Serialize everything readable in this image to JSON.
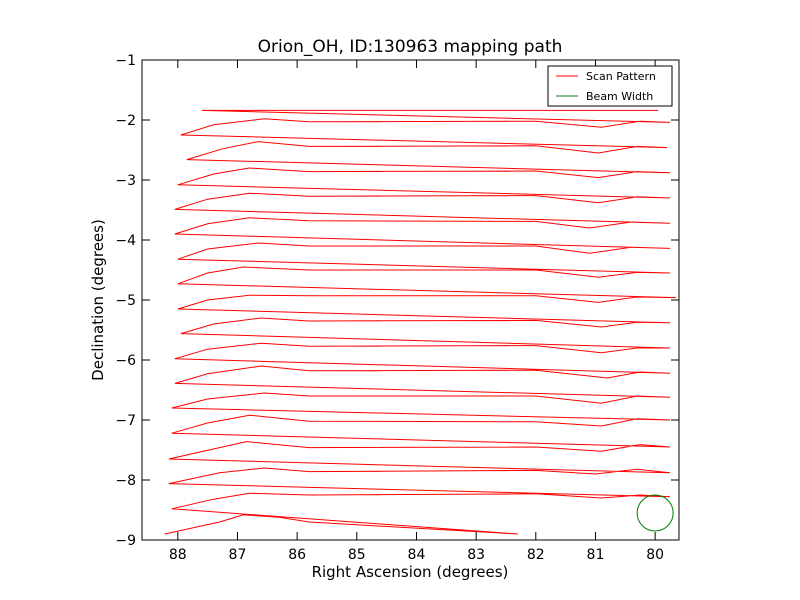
{
  "chart_data": {
    "type": "line",
    "title": "Orion_OH, ID:130963 mapping path",
    "xlabel": "Right Ascension (degrees)",
    "ylabel": "Declination (degrees)",
    "xlim": [
      88.6,
      79.6
    ],
    "ylim": [
      -9,
      -1
    ],
    "x_reversed": true,
    "xticks": [
      88,
      87,
      86,
      85,
      84,
      83,
      82,
      81,
      80
    ],
    "yticks": [
      -1,
      -2,
      -3,
      -4,
      -5,
      -6,
      -7,
      -8,
      -9
    ],
    "xtick_labels": [
      "88",
      "87",
      "86",
      "85",
      "84",
      "83",
      "82",
      "81",
      "80"
    ],
    "ytick_labels": [
      "−1",
      "−2",
      "−3",
      "−4",
      "−5",
      "−6",
      "−7",
      "−8",
      "−9"
    ],
    "grid": false,
    "legend_position": "top-right",
    "series": [
      {
        "name": "Scan Pattern",
        "color": "#ff0000",
        "points": [
          [
            88.22,
            -8.9
          ],
          [
            87.3,
            -8.7
          ],
          [
            86.9,
            -8.58
          ],
          [
            86.3,
            -8.62
          ],
          [
            85.8,
            -8.7
          ],
          [
            82.3,
            -8.9
          ],
          [
            88.1,
            -8.48
          ],
          [
            87.4,
            -8.32
          ],
          [
            86.8,
            -8.22
          ],
          [
            85.8,
            -8.25
          ],
          [
            82.0,
            -8.23
          ],
          [
            80.9,
            -8.3
          ],
          [
            80.25,
            -8.25
          ],
          [
            79.75,
            -8.28
          ],
          [
            88.15,
            -8.06
          ],
          [
            87.3,
            -7.88
          ],
          [
            86.55,
            -7.8
          ],
          [
            85.8,
            -7.86
          ],
          [
            82.0,
            -7.84
          ],
          [
            81.0,
            -7.9
          ],
          [
            80.3,
            -7.82
          ],
          [
            79.75,
            -7.88
          ],
          [
            88.15,
            -7.65
          ],
          [
            87.3,
            -7.46
          ],
          [
            86.85,
            -7.36
          ],
          [
            85.8,
            -7.46
          ],
          [
            82.0,
            -7.45
          ],
          [
            80.9,
            -7.52
          ],
          [
            80.25,
            -7.41
          ],
          [
            79.75,
            -7.45
          ],
          [
            88.1,
            -7.22
          ],
          [
            87.5,
            -7.05
          ],
          [
            86.8,
            -6.92
          ],
          [
            85.8,
            -7.02
          ],
          [
            82.0,
            -7.03
          ],
          [
            80.9,
            -7.1
          ],
          [
            80.3,
            -6.98
          ],
          [
            79.75,
            -7.0
          ],
          [
            88.1,
            -6.8
          ],
          [
            87.5,
            -6.65
          ],
          [
            86.55,
            -6.55
          ],
          [
            85.8,
            -6.6
          ],
          [
            82.0,
            -6.6
          ],
          [
            80.9,
            -6.72
          ],
          [
            80.3,
            -6.6
          ],
          [
            79.75,
            -6.62
          ],
          [
            88.05,
            -6.39
          ],
          [
            87.5,
            -6.23
          ],
          [
            86.6,
            -6.1
          ],
          [
            85.8,
            -6.18
          ],
          [
            82.0,
            -6.17
          ],
          [
            80.8,
            -6.3
          ],
          [
            80.25,
            -6.2
          ],
          [
            79.75,
            -6.22
          ],
          [
            88.05,
            -5.98
          ],
          [
            87.5,
            -5.82
          ],
          [
            86.6,
            -5.72
          ],
          [
            85.8,
            -5.77
          ],
          [
            82.0,
            -5.76
          ],
          [
            80.9,
            -5.88
          ],
          [
            80.3,
            -5.8
          ],
          [
            79.75,
            -5.8
          ],
          [
            87.95,
            -5.56
          ],
          [
            87.4,
            -5.4
          ],
          [
            86.6,
            -5.3
          ],
          [
            85.8,
            -5.35
          ],
          [
            82.0,
            -5.34
          ],
          [
            80.9,
            -5.45
          ],
          [
            80.3,
            -5.37
          ],
          [
            79.75,
            -5.38
          ],
          [
            88.0,
            -5.15
          ],
          [
            87.5,
            -5.0
          ],
          [
            86.8,
            -4.92
          ],
          [
            85.8,
            -4.93
          ],
          [
            82.0,
            -4.93
          ],
          [
            80.95,
            -5.04
          ],
          [
            80.3,
            -4.95
          ],
          [
            79.65,
            -4.96
          ],
          [
            88.0,
            -4.73
          ],
          [
            87.5,
            -4.55
          ],
          [
            86.9,
            -4.45
          ],
          [
            85.8,
            -4.5
          ],
          [
            82.0,
            -4.5
          ],
          [
            80.95,
            -4.62
          ],
          [
            80.3,
            -4.54
          ],
          [
            79.75,
            -4.55
          ],
          [
            88.0,
            -4.32
          ],
          [
            87.5,
            -4.15
          ],
          [
            86.65,
            -4.05
          ],
          [
            85.8,
            -4.1
          ],
          [
            82.0,
            -4.1
          ],
          [
            81.1,
            -4.22
          ],
          [
            80.4,
            -4.12
          ],
          [
            79.75,
            -4.14
          ],
          [
            88.05,
            -3.9
          ],
          [
            87.5,
            -3.73
          ],
          [
            86.8,
            -3.63
          ],
          [
            85.8,
            -3.68
          ],
          [
            82.0,
            -3.69
          ],
          [
            81.1,
            -3.8
          ],
          [
            80.4,
            -3.7
          ],
          [
            79.75,
            -3.72
          ],
          [
            88.05,
            -3.49
          ],
          [
            87.5,
            -3.32
          ],
          [
            86.8,
            -3.22
          ],
          [
            85.8,
            -3.27
          ],
          [
            82.0,
            -3.26
          ],
          [
            80.95,
            -3.38
          ],
          [
            80.3,
            -3.28
          ],
          [
            79.75,
            -3.3
          ],
          [
            88.0,
            -3.08
          ],
          [
            87.4,
            -2.9
          ],
          [
            86.8,
            -2.8
          ],
          [
            85.8,
            -2.86
          ],
          [
            82.0,
            -2.85
          ],
          [
            80.95,
            -2.96
          ],
          [
            80.3,
            -2.86
          ],
          [
            79.75,
            -2.88
          ],
          [
            87.85,
            -2.66
          ],
          [
            87.25,
            -2.48
          ],
          [
            86.65,
            -2.36
          ],
          [
            85.8,
            -2.44
          ],
          [
            82.0,
            -2.43
          ],
          [
            80.95,
            -2.55
          ],
          [
            80.3,
            -2.44
          ],
          [
            79.8,
            -2.46
          ],
          [
            87.95,
            -2.25
          ],
          [
            87.4,
            -2.08
          ],
          [
            86.55,
            -1.98
          ],
          [
            85.8,
            -2.03
          ],
          [
            82.0,
            -2.02
          ],
          [
            80.9,
            -2.12
          ],
          [
            80.25,
            -2.02
          ],
          [
            79.75,
            -2.04
          ],
          [
            87.6,
            -1.84
          ],
          [
            79.95,
            -1.84
          ]
        ]
      },
      {
        "name": "Beam Width",
        "color": "#008000",
        "circle": {
          "cx": 80.0,
          "cy": -8.55,
          "r": 0.3
        }
      }
    ]
  }
}
